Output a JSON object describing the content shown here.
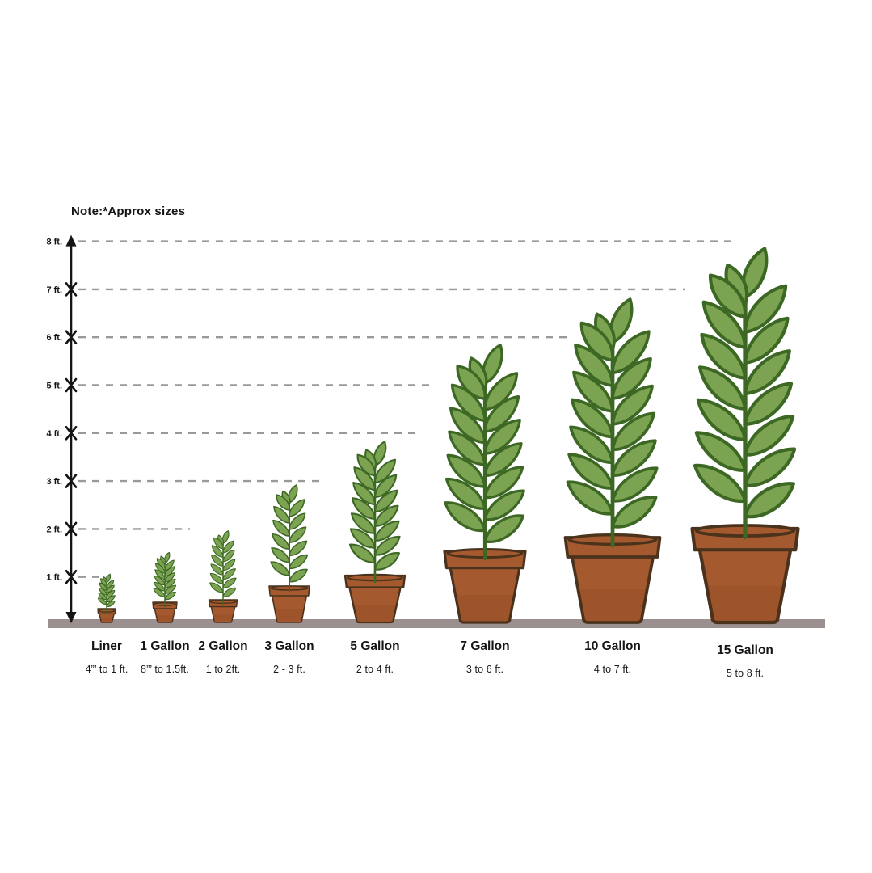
{
  "note": "Note:*Approx sizes",
  "axis": {
    "unit": "ft.",
    "tick_labels": [
      "1 ft.",
      "2 ft.",
      "3 ft.",
      "4 ft.",
      "5 ft.",
      "6 ft.",
      "7 ft.",
      "8 ft."
    ]
  },
  "chart_data": {
    "type": "bar",
    "subtype": "pictorial-plant-container-size-chart",
    "title": "Note:*Approx sizes",
    "categories": [
      "Liner",
      "1 Gallon",
      "2 Gallon",
      "3 Gallon",
      "5 Gallon",
      "7 Gallon",
      "10 Gallon",
      "15 Gallon"
    ],
    "size_ranges": [
      "4”’ to 1 ft.",
      "8”’ to 1.5ft.",
      "1 to 2ft.",
      "2 - 3 ft.",
      "2 to 4 ft.",
      "3 to 6 ft.",
      "4 to 7 ft.",
      "5 to 8 ft."
    ],
    "height_min_ft": [
      0.33,
      0.67,
      1,
      2,
      2,
      3,
      4,
      5
    ],
    "height_max_ft": [
      1,
      1.5,
      2,
      3,
      4,
      6,
      7,
      8
    ],
    "rendered_plant_top_ft": [
      1.05,
      1.5,
      1.95,
      2.9,
      3.8,
      5.8,
      6.75,
      7.8
    ],
    "ylabel": "ft.",
    "ylim": [
      0,
      8
    ],
    "yticks": [
      1,
      2,
      3,
      4,
      5,
      6,
      7,
      8
    ],
    "grid": "dashed horizontal guide per foot",
    "legend": "none"
  },
  "colors": {
    "leaf_fill": "#7CA352",
    "leaf_outline": "#3C6824",
    "pot_fill": "#A5592E",
    "pot_outline": "#4A321C",
    "ground": "#9C8F8F",
    "dash": "#999999",
    "axis": "#141414",
    "text": "#141414"
  }
}
